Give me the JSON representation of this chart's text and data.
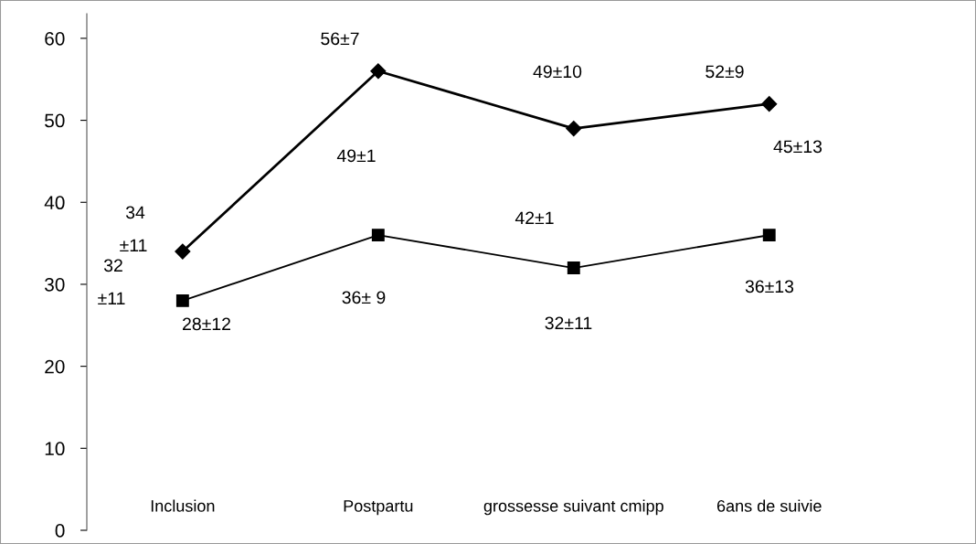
{
  "chart_data": {
    "type": "line",
    "categories": [
      "Inclusion",
      "Postpartu",
      "grossesse suivant cmipp",
      "6ans de suivie"
    ],
    "series": [
      {
        "color": "#000000",
        "marker": "diamond",
        "values": [
          34,
          56,
          49,
          52
        ]
      },
      {
        "color": "#000000",
        "marker": "square",
        "values": [
          28,
          36,
          32,
          36
        ]
      }
    ],
    "ylim": [
      0,
      63
    ],
    "yticks": [
      0,
      10,
      20,
      30,
      40,
      50,
      60
    ],
    "grid": false,
    "legend": false,
    "line_style": "solid",
    "annotations": [
      "56±7",
      "49±10",
      "52±9",
      "45±13",
      "49±1",
      "42±1",
      "34",
      "±11",
      "32",
      "±11",
      "28±12",
      "36± 9",
      "32±11",
      "36±13"
    ]
  }
}
